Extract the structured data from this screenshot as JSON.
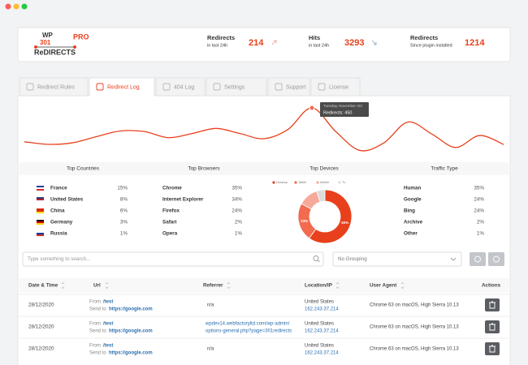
{
  "header": {
    "logo": {
      "top": "WP",
      "mid": "301",
      "bottom": "ReDIRECTS",
      "badge": "PRO"
    },
    "stats": [
      {
        "label": "Redirects",
        "sub": "in last 24h",
        "value": 214
      },
      {
        "label": "Hits",
        "sub": "in last 24h",
        "value": 3293
      },
      {
        "label": "Redirects",
        "sub": "Since plugin installed",
        "value": 1214
      }
    ]
  },
  "tabs": [
    "Redirect Rules",
    "Redirect Log",
    "404 Log",
    "Settings",
    "Support",
    "License"
  ],
  "active_tab": 1,
  "traffic": {
    "color": "#e8401c",
    "values": [
      120,
      95,
      110,
      170,
      225,
      220,
      160,
      200,
      250,
      200,
      150,
      240,
      450,
      218,
      36,
      109,
      312,
      196,
      65,
      181,
      94
    ],
    "peak_index": 12,
    "tooltip": {
      "date": "Tuesday, November 3rd",
      "label": "Redirects: 450"
    }
  },
  "stats": {
    "countries": {
      "title": "Top Countries",
      "rows": [
        [
          "France",
          "15%"
        ],
        [
          "United States",
          "8%"
        ],
        [
          "China",
          "6%"
        ],
        [
          "Germany",
          "3%"
        ],
        [
          "Russia",
          "1%"
        ]
      ]
    },
    "browsers": {
      "title": "Top Browsers",
      "rows": [
        [
          "Chrome",
          "35%"
        ],
        [
          "Internet Explorer",
          "34%"
        ],
        [
          "Firefox",
          "24%"
        ],
        [
          "Safari",
          "2%"
        ],
        [
          "Opera",
          "1%"
        ]
      ]
    },
    "devices": {
      "title": "Top Devices",
      "segments": [
        {
          "name": "Desktop",
          "color": "#e8401c",
          "value": 60,
          "label": "60%"
        },
        {
          "name": "Tablet",
          "color": "#f26b4f",
          "value": 23,
          "label": "23%"
        },
        {
          "name": "Mobile",
          "color": "#f7a999",
          "value": 12
        },
        {
          "name": "Tv",
          "color": "#dcdcdc",
          "value": 5
        }
      ]
    },
    "traffic_type": {
      "title": "Traffic Type",
      "rows": [
        [
          "Human",
          "35%"
        ],
        [
          "Google",
          "24%"
        ],
        [
          "Bing",
          "24%"
        ],
        [
          "Archive",
          "2%"
        ],
        [
          "Other",
          "1%"
        ]
      ]
    }
  },
  "search": {
    "placeholder": "Type something to search...",
    "grouping": "No Grouping"
  },
  "table": {
    "headers": [
      "Date & Time",
      "Url",
      "Referrer",
      "Location/IP",
      "User Agent",
      "Actions"
    ],
    "rows": [
      {
        "date": "28/12/2020",
        "from_label": "From",
        "from": "/test",
        "to_label": "Send to",
        "to": "https://google.com",
        "referrer": [
          "n/a"
        ],
        "location": "United States",
        "ip": "162.243.37.214",
        "agent": "Chrome 63 on macOS, High Sierra 10.13"
      },
      {
        "date": "28/12/2020",
        "from_label": "From",
        "from": "/test",
        "to_label": "Send to",
        "to": "https://google.com",
        "referrer": [
          "wpdev14.webfactoryltd.com/wp-admin/",
          "options-general.php?page=301redirects"
        ],
        "location": "United States",
        "ip": "162.243.37.214",
        "agent": "Chrome 63 on macOS, High Sierra 10.13"
      },
      {
        "date": "28/12/2020",
        "from_label": "From",
        "from": "/test",
        "to_label": "Send to",
        "to": "https://google.com",
        "referrer": [
          "n/a"
        ],
        "location": "United States",
        "ip": "162.243.37.214",
        "agent": "Chrome 63 on macOS, High Sierra 10.13"
      }
    ]
  }
}
